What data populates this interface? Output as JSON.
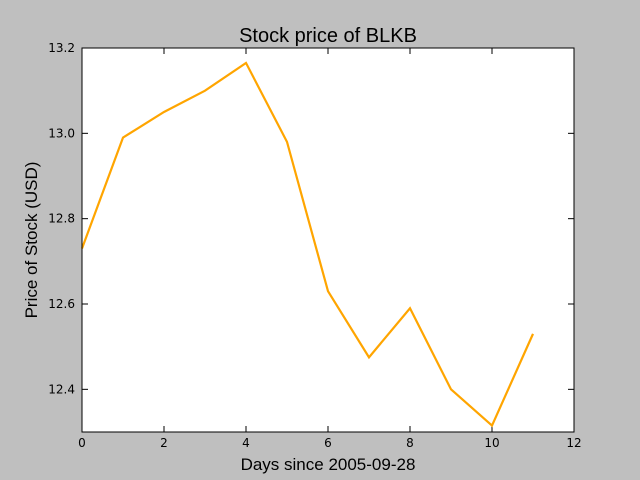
{
  "chart_data": {
    "type": "line",
    "title": "Stock price of BLKB",
    "xlabel": "Days since 2005-09-28",
    "ylabel": "Price of Stock (USD)",
    "xlim": [
      0,
      12
    ],
    "ylim": [
      12.3,
      13.2
    ],
    "x_ticks": [
      0,
      2,
      4,
      6,
      8,
      10,
      12
    ],
    "y_ticks": [
      12.4,
      12.6,
      12.8,
      13.0,
      13.2
    ],
    "x_tick_labels": [
      "0",
      "2",
      "4",
      "6",
      "8",
      "10",
      "12"
    ],
    "y_tick_labels": [
      "12.4",
      "12.6",
      "12.8",
      "13.0",
      "13.2"
    ],
    "grid": false,
    "series": [
      {
        "color": "#ffa500",
        "x": [
          0,
          1,
          2,
          3,
          4,
          5,
          6,
          7,
          8,
          9,
          10,
          11
        ],
        "y": [
          12.73,
          12.99,
          13.05,
          13.1,
          13.165,
          12.98,
          12.63,
          12.475,
          12.59,
          12.4,
          12.315,
          12.53
        ]
      }
    ]
  }
}
